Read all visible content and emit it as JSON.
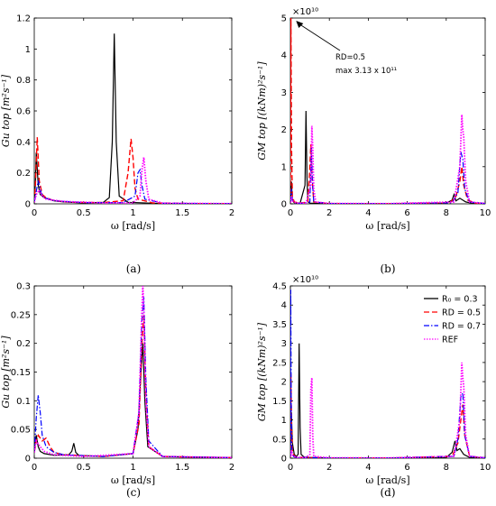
{
  "legend": {
    "entries": [
      {
        "label": "R₀ = 0.3",
        "sub_label": "RD = 0.3",
        "color": "#000000",
        "dash": "solid"
      },
      {
        "label": "RD = 0.5",
        "color": "#ff0000",
        "dash": "dashed"
      },
      {
        "label": "RD = 0.7",
        "color": "#0000ff",
        "dash": "dashdot"
      },
      {
        "label": "REF",
        "color": "#ff00ff",
        "dash": "dotted"
      }
    ]
  },
  "chart_data": [
    {
      "panel": "(a)",
      "type": "line",
      "xlabel": "ω [rad/s]",
      "ylabel": "G_{u_{top}} [m²s⁻¹]",
      "xlim": [
        0,
        2
      ],
      "ylim": [
        0,
        1.2
      ],
      "xticks": [
        "0",
        "0.5",
        "1",
        "1.5",
        "2"
      ],
      "yticks": [
        "0",
        "0.2",
        "0.4",
        "0.6",
        "0.8",
        "1",
        "1.2"
      ],
      "series": [
        {
          "name": "RD = 0.3",
          "x": [
            0,
            0.01,
            0.02,
            0.04,
            0.06,
            0.1,
            0.15,
            0.2,
            0.3,
            0.5,
            0.7,
            0.76,
            0.79,
            0.81,
            0.83,
            0.86,
            0.95,
            1.2,
            1.5,
            2.0
          ],
          "y": [
            0.02,
            0.12,
            0.33,
            0.12,
            0.06,
            0.04,
            0.03,
            0.02,
            0.012,
            0.006,
            0.01,
            0.04,
            0.4,
            1.1,
            0.4,
            0.05,
            0.01,
            0.004,
            0.002,
            0.001
          ]
        },
        {
          "name": "RD = 0.5",
          "x": [
            0,
            0.01,
            0.03,
            0.05,
            0.08,
            0.12,
            0.2,
            0.4,
            0.7,
            0.9,
            0.95,
            0.98,
            1.0,
            1.02,
            1.05,
            1.2,
            1.6,
            2.0
          ],
          "y": [
            0.01,
            0.1,
            0.43,
            0.15,
            0.06,
            0.04,
            0.02,
            0.01,
            0.008,
            0.02,
            0.2,
            0.42,
            0.3,
            0.1,
            0.03,
            0.006,
            0.002,
            0.001
          ]
        },
        {
          "name": "RD = 0.7",
          "x": [
            0,
            0.02,
            0.04,
            0.07,
            0.1,
            0.2,
            0.5,
            0.9,
            1.02,
            1.05,
            1.07,
            1.09,
            1.12,
            1.3,
            2.0
          ],
          "y": [
            0.01,
            0.08,
            0.15,
            0.07,
            0.04,
            0.02,
            0.008,
            0.008,
            0.05,
            0.2,
            0.22,
            0.12,
            0.03,
            0.004,
            0.001
          ]
        },
        {
          "name": "REF",
          "x": [
            0,
            0.02,
            0.05,
            0.08,
            0.12,
            0.3,
            0.7,
            1.0,
            1.07,
            1.09,
            1.11,
            1.13,
            1.16,
            1.3,
            2.0
          ],
          "y": [
            0.01,
            0.06,
            0.09,
            0.05,
            0.03,
            0.015,
            0.006,
            0.006,
            0.05,
            0.22,
            0.3,
            0.15,
            0.03,
            0.004,
            0.001
          ]
        }
      ]
    },
    {
      "panel": "(b)",
      "type": "line",
      "xlabel": "ω [rad/s]",
      "ylabel": "G_{M_{top}} [(kNm)²s⁻¹]",
      "xlim": [
        0,
        10
      ],
      "ylim": [
        0,
        5
      ],
      "y_multiplier": "×10¹⁰",
      "xticks": [
        "0",
        "2",
        "4",
        "6",
        "8",
        "10"
      ],
      "yticks": [
        "0",
        "1",
        "2",
        "3",
        "4",
        "5"
      ],
      "annotation": {
        "line1": "RD=0.5",
        "line2": "max 3.13 x 10¹¹"
      },
      "series": [
        {
          "name": "RD = 0.3",
          "x": [
            0,
            0.05,
            0.1,
            0.2,
            0.5,
            0.75,
            0.8,
            0.85,
            0.9,
            1.0,
            1.5,
            3,
            6,
            8.0,
            8.3,
            8.4,
            8.5,
            8.7,
            9.0,
            9.3,
            10
          ],
          "y": [
            0.05,
            0.6,
            0.1,
            0.03,
            0.02,
            0.5,
            2.5,
            0.7,
            0.05,
            0.02,
            0.01,
            0.005,
            0.005,
            0.02,
            0.1,
            0.25,
            0.08,
            0.15,
            0.05,
            0.02,
            0.01
          ]
        },
        {
          "name": "RD = 0.5",
          "x": [
            0,
            0.03,
            0.06,
            0.1,
            0.2,
            0.5,
            0.9,
            1.0,
            1.05,
            1.1,
            1.2,
            2,
            5,
            8.2,
            8.5,
            8.7,
            8.8,
            8.9,
            9.1,
            9.5,
            10
          ],
          "y": [
            0.05,
            5.0,
            1.5,
            0.2,
            0.05,
            0.02,
            0.05,
            1.0,
            1.6,
            0.8,
            0.05,
            0.01,
            0.005,
            0.03,
            0.2,
            0.6,
            1.0,
            0.5,
            0.1,
            0.02,
            0.01
          ]
        },
        {
          "name": "RD = 0.7",
          "x": [
            0,
            0.05,
            0.1,
            0.2,
            0.5,
            1.0,
            1.08,
            1.12,
            1.2,
            2,
            5,
            8.3,
            8.6,
            8.75,
            8.85,
            8.95,
            9.2,
            10
          ],
          "y": [
            0.05,
            0.4,
            0.1,
            0.03,
            0.01,
            0.05,
            1.5,
            0.7,
            0.05,
            0.01,
            0.005,
            0.03,
            0.3,
            1.4,
            1.2,
            0.4,
            0.05,
            0.01
          ]
        },
        {
          "name": "REF",
          "x": [
            0,
            0.05,
            0.1,
            0.3,
            0.8,
            1.05,
            1.1,
            1.15,
            1.2,
            1.3,
            2,
            5,
            8.4,
            8.7,
            8.8,
            8.85,
            8.9,
            9.0,
            9.2,
            10
          ],
          "y": [
            0.03,
            0.2,
            0.08,
            0.02,
            0.02,
            0.5,
            2.1,
            1.5,
            0.4,
            0.05,
            0.01,
            0.005,
            0.05,
            1.0,
            2.4,
            2.0,
            1.8,
            0.6,
            0.05,
            0.01
          ]
        }
      ]
    },
    {
      "panel": "(c)",
      "type": "line",
      "xlabel": "ω [rad/s]",
      "ylabel": "G_{u_{top}} [m²s⁻¹]",
      "xlim": [
        0,
        2
      ],
      "ylim": [
        0,
        0.3
      ],
      "xticks": [
        "0",
        "0.5",
        "1",
        "1.5",
        "2"
      ],
      "yticks": [
        "0",
        "0.05",
        "0.1",
        "0.15",
        "0.2",
        "0.25",
        "0.3"
      ],
      "series": [
        {
          "name": "RD = 0.3",
          "x": [
            0,
            0.01,
            0.02,
            0.04,
            0.06,
            0.1,
            0.2,
            0.35,
            0.38,
            0.4,
            0.42,
            0.45,
            0.7,
            1.0,
            1.05,
            1.08,
            1.1,
            1.12,
            1.15,
            1.3,
            2.0
          ],
          "y": [
            0.01,
            0.03,
            0.04,
            0.02,
            0.012,
            0.008,
            0.005,
            0.006,
            0.012,
            0.026,
            0.01,
            0.005,
            0.003,
            0.008,
            0.05,
            0.15,
            0.2,
            0.1,
            0.02,
            0.003,
            0.001
          ]
        },
        {
          "name": "RD = 0.5",
          "x": [
            0,
            0.02,
            0.04,
            0.08,
            0.12,
            0.16,
            0.2,
            0.3,
            0.7,
            1.0,
            1.06,
            1.09,
            1.11,
            1.13,
            1.16,
            1.3,
            2.0
          ],
          "y": [
            0.01,
            0.03,
            0.04,
            0.03,
            0.035,
            0.02,
            0.01,
            0.006,
            0.003,
            0.008,
            0.06,
            0.2,
            0.25,
            0.12,
            0.02,
            0.003,
            0.001
          ]
        },
        {
          "name": "RD = 0.7",
          "x": [
            0,
            0.02,
            0.04,
            0.06,
            0.08,
            0.12,
            0.2,
            0.3,
            0.7,
            1.0,
            1.06,
            1.09,
            1.11,
            1.13,
            1.16,
            1.3,
            2.0
          ],
          "y": [
            0.01,
            0.07,
            0.11,
            0.08,
            0.04,
            0.02,
            0.01,
            0.006,
            0.003,
            0.008,
            0.08,
            0.24,
            0.28,
            0.14,
            0.03,
            0.003,
            0.001
          ]
        },
        {
          "name": "REF",
          "x": [
            0,
            0.02,
            0.04,
            0.06,
            0.1,
            0.2,
            0.5,
            1.0,
            1.06,
            1.09,
            1.1,
            1.11,
            1.13,
            1.16,
            1.3,
            2.0
          ],
          "y": [
            0.01,
            0.03,
            0.025,
            0.02,
            0.012,
            0.006,
            0.003,
            0.008,
            0.08,
            0.26,
            0.3,
            0.26,
            0.1,
            0.02,
            0.003,
            0.001
          ]
        }
      ]
    },
    {
      "panel": "(d)",
      "type": "line",
      "xlabel": "ω [rad/s]",
      "ylabel": "G_{M_{top}} [(kNm)²s⁻¹]",
      "xlim": [
        0,
        10
      ],
      "ylim": [
        0,
        4.5
      ],
      "y_multiplier": "×10¹⁰",
      "xticks": [
        "0",
        "2",
        "4",
        "6",
        "8",
        "10"
      ],
      "yticks": [
        "0",
        "0.5",
        "1",
        "1.5",
        "2",
        "2.5",
        "3",
        "3.5",
        "4",
        "4.5"
      ],
      "series": [
        {
          "name": "RD = 0.3",
          "x": [
            0,
            0.05,
            0.1,
            0.2,
            0.3,
            0.4,
            0.45,
            0.5,
            0.55,
            0.7,
            1.0,
            2,
            5,
            8.0,
            8.3,
            8.45,
            8.55,
            8.7,
            8.9,
            9.2,
            10
          ],
          "y": [
            0.05,
            1.2,
            0.4,
            0.1,
            0.05,
            0.1,
            3.0,
            0.8,
            0.1,
            0.03,
            0.02,
            0.005,
            0.005,
            0.02,
            0.15,
            0.45,
            0.2,
            0.25,
            0.1,
            0.02,
            0.01
          ]
        },
        {
          "name": "RD = 0.5",
          "x": [
            0,
            0.03,
            0.06,
            0.1,
            0.2,
            0.5,
            1.0,
            2,
            5,
            8.3,
            8.6,
            8.75,
            8.85,
            8.95,
            9.2,
            10
          ],
          "y": [
            0.05,
            2.2,
            0.8,
            0.2,
            0.05,
            0.02,
            0.02,
            0.005,
            0.005,
            0.05,
            0.4,
            1.0,
            1.4,
            0.6,
            0.05,
            0.01
          ]
        },
        {
          "name": "RD = 0.7",
          "x": [
            0,
            0.02,
            0.04,
            0.07,
            0.1,
            0.2,
            0.5,
            1.0,
            2,
            5,
            8.4,
            8.6,
            8.75,
            8.85,
            8.95,
            9.2,
            10
          ],
          "y": [
            0.05,
            4.4,
            1.5,
            0.3,
            0.1,
            0.03,
            0.02,
            0.02,
            0.005,
            0.005,
            0.05,
            0.5,
            1.6,
            1.7,
            0.6,
            0.05,
            0.01
          ]
        },
        {
          "name": "REF",
          "x": [
            0,
            0.05,
            0.1,
            0.3,
            0.8,
            1.0,
            1.05,
            1.1,
            1.15,
            1.2,
            2,
            5,
            8.4,
            8.7,
            8.8,
            8.85,
            8.9,
            9.0,
            9.2,
            10
          ],
          "y": [
            0.03,
            0.2,
            0.08,
            0.02,
            0.02,
            0.1,
            1.8,
            2.1,
            0.6,
            0.05,
            0.01,
            0.005,
            0.05,
            1.0,
            2.5,
            2.1,
            1.9,
            0.6,
            0.05,
            0.01
          ]
        }
      ]
    }
  ]
}
